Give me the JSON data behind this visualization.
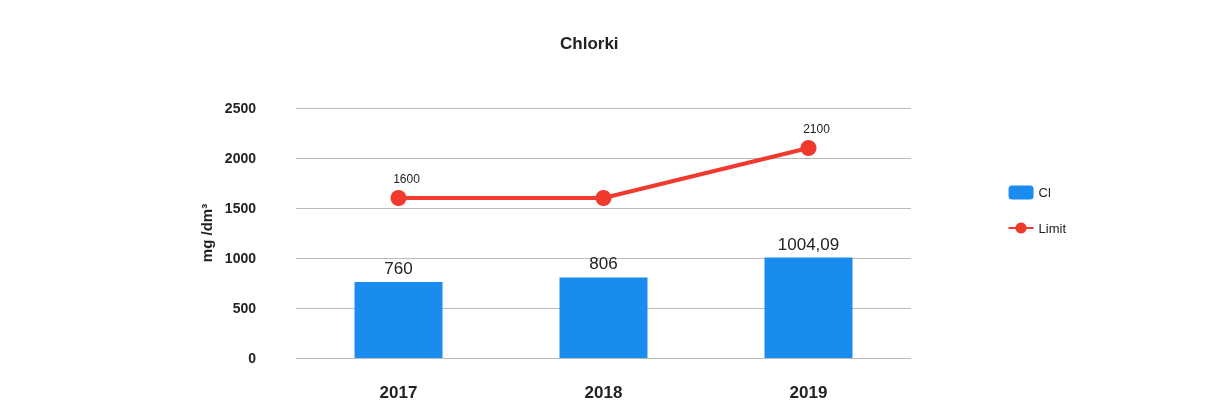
{
  "chart_data": {
    "type": "bar",
    "title": "Chlorki",
    "ylabel": "mg /dm³",
    "categories": [
      "2017",
      "2018",
      "2019"
    ],
    "series": [
      {
        "name": "Cl",
        "color": "#1a8cf0",
        "values": [
          760,
          806,
          1004.09
        ],
        "value_labels": [
          "760",
          "806",
          "1004,09"
        ]
      },
      {
        "name": "Limit",
        "type": "line",
        "color": "#f03a2e",
        "values": [
          1600,
          1600,
          2100
        ],
        "value_labels": [
          "1600",
          null,
          "2100"
        ],
        "marker": "circle"
      }
    ],
    "ylim": [
      0,
      2500
    ],
    "yticks": [
      0,
      500,
      1000,
      1500,
      2000,
      2500
    ],
    "grid": "y",
    "legend": "right"
  }
}
